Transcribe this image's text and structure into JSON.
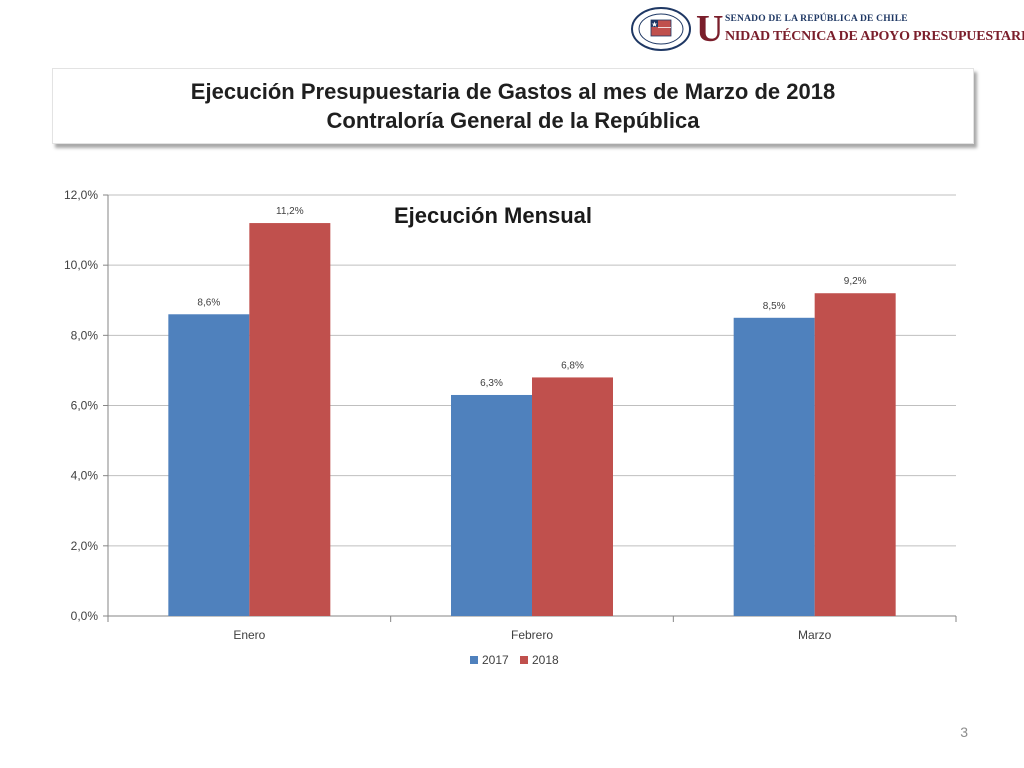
{
  "header": {
    "seal_text_top": "REPÚBLICA DE CHILE",
    "seal_text_bottom": "SENADO",
    "big_letter": "U",
    "senado_line": "SENADO DE LA REPÚBLICA DE CHILE",
    "unit_line": "NIDAD TÉCNICA DE APOYO PRESUPUESTARIO"
  },
  "slide": {
    "title_line1": "Ejecución Presupuestaria de Gastos al mes de Marzo de 2018",
    "title_line2": "Contraloría General de la República",
    "page_number": "3"
  },
  "colors": {
    "series_2017": "#4f81bd",
    "series_2018": "#c0504d",
    "gridline": "#bfbfbf",
    "axis": "#868686",
    "label": "#404040"
  },
  "chart_data": {
    "type": "bar",
    "title": "Ejecución Mensual",
    "categories": [
      "Enero",
      "Febrero",
      "Marzo"
    ],
    "series": [
      {
        "name": "2017",
        "values": [
          8.6,
          6.3,
          8.5
        ],
        "labels": [
          "8,6%",
          "6,3%",
          "8,5%"
        ]
      },
      {
        "name": "2018",
        "values": [
          11.2,
          6.8,
          9.2
        ],
        "labels": [
          "11,2%",
          "6,8%",
          "9,2%"
        ]
      }
    ],
    "ylim": [
      0,
      12
    ],
    "yticks": [
      0,
      2,
      4,
      6,
      8,
      10,
      12
    ],
    "ytick_labels": [
      "0,0%",
      "2,0%",
      "4,0%",
      "6,0%",
      "8,0%",
      "10,0%",
      "12,0%"
    ],
    "xlabel": "",
    "ylabel": "",
    "grid": true,
    "legend_position": "bottom"
  }
}
